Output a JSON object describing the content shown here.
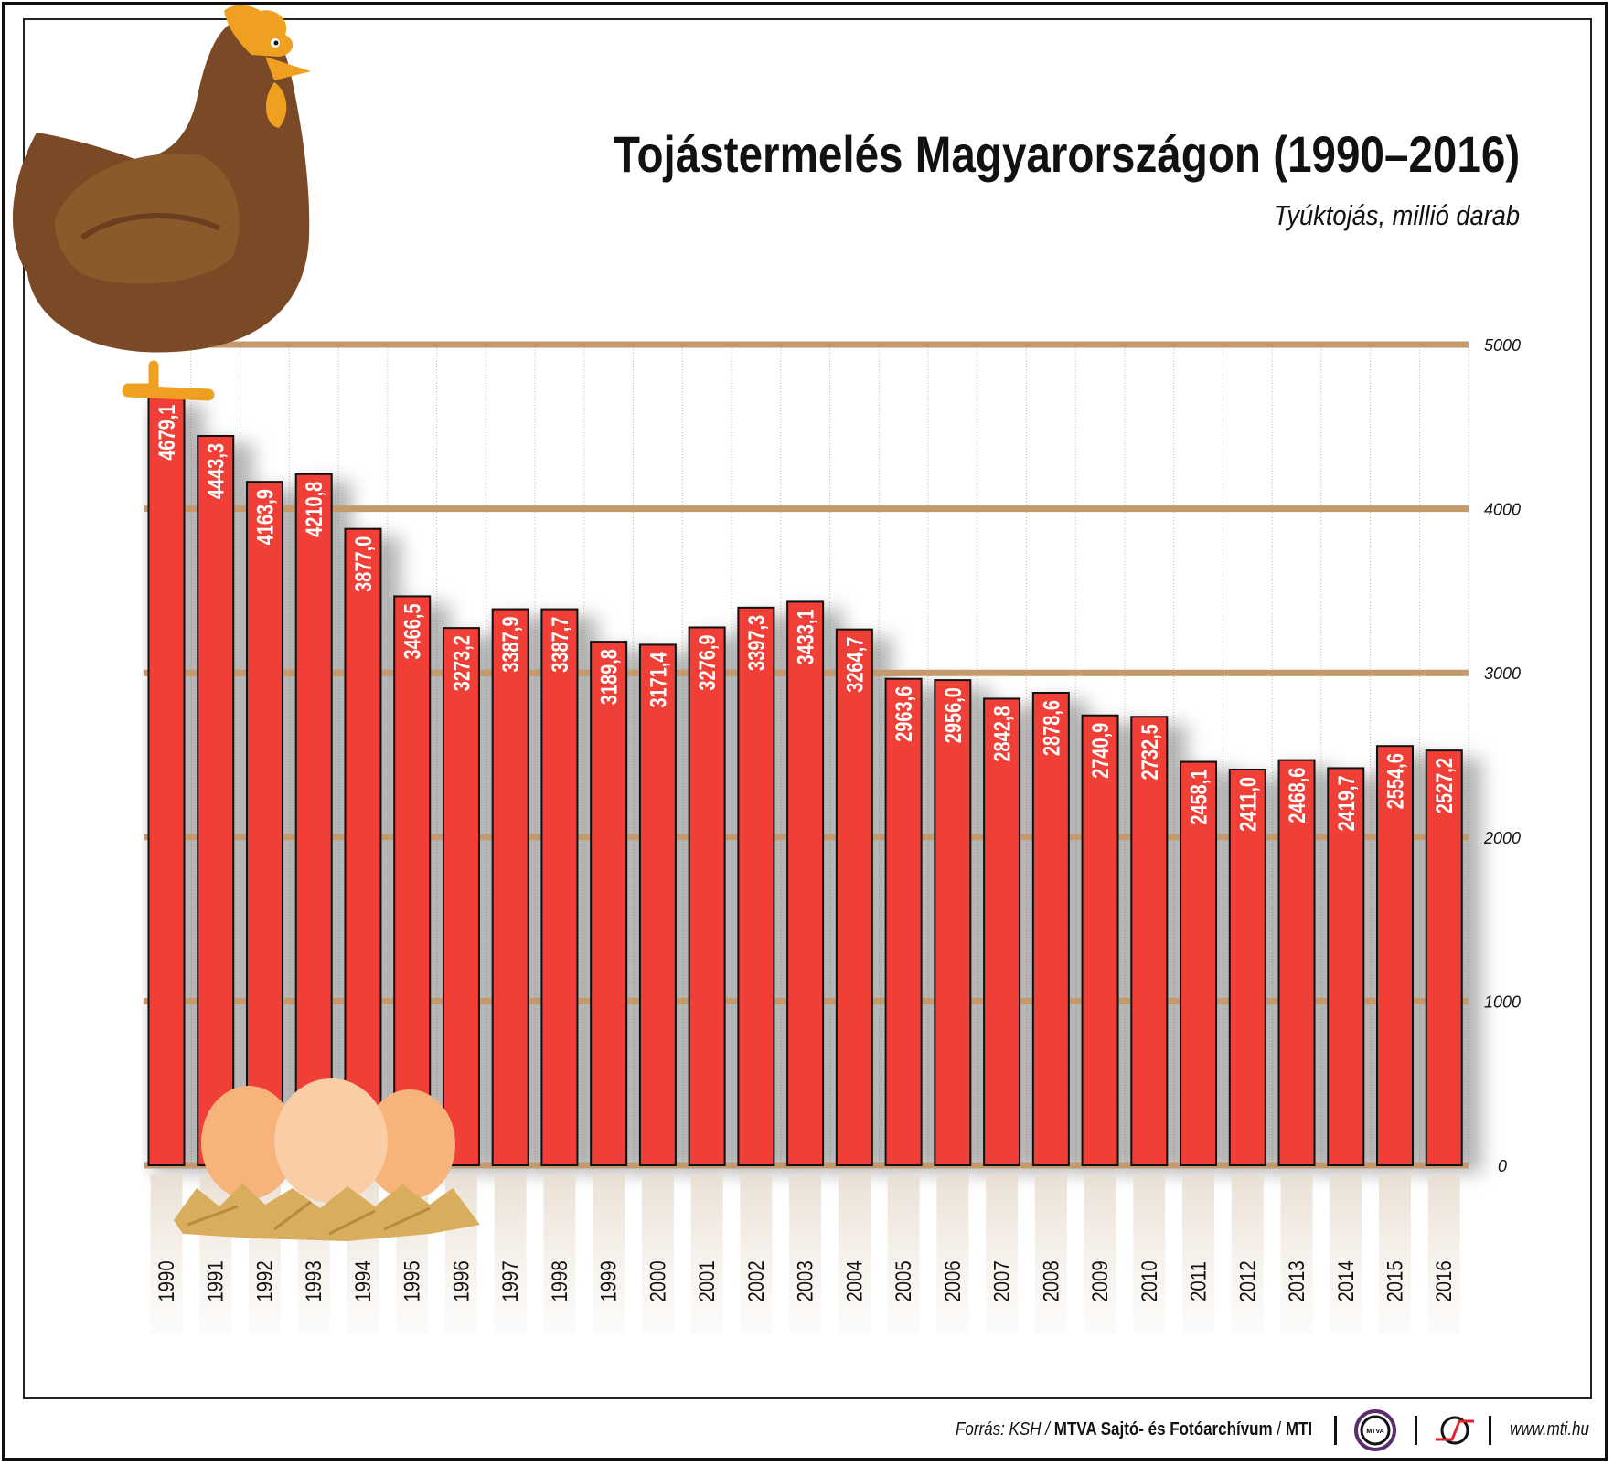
{
  "title": "Tojástermelés Magyarországon (1990–2016)",
  "subtitle": "Tyúktojás, millió darab",
  "footer": {
    "source_prefix": "Forrás: KSH / ",
    "source_bold": "MTVA Sajtó- és Fotóarchívum",
    "source_sep": " / ",
    "source_mti": "MTI",
    "logo_mtva": "MTVA",
    "url": "www.mti.hu"
  },
  "colors": {
    "bar": "#ef3f36",
    "grid": "#c49a6c",
    "hen": "#7a4a26",
    "hen_wing": "#8b5a2b",
    "comb": "#f0a020"
  },
  "chart_data": {
    "type": "bar",
    "title": "Tojástermelés Magyarországon (1990–2016)",
    "subtitle": "Tyúktojás, millió darab",
    "categories": [
      "1990",
      "1991",
      "1992",
      "1993",
      "1994",
      "1995",
      "1996",
      "1997",
      "1998",
      "1999",
      "2000",
      "2001",
      "2002",
      "2003",
      "2004",
      "2005",
      "2006",
      "2007",
      "2008",
      "2009",
      "2010",
      "2011",
      "2012",
      "2013",
      "2014",
      "2015",
      "2016"
    ],
    "values": [
      4679.1,
      4443.3,
      4163.9,
      4210.8,
      3877.0,
      3466.5,
      3273.2,
      3387.9,
      3387.7,
      3189.8,
      3171.4,
      3276.9,
      3397.3,
      3433.1,
      3264.7,
      2963.6,
      2956.0,
      2842.8,
      2878.6,
      2740.9,
      2732.5,
      2458.1,
      2411.0,
      2468.6,
      2419.7,
      2554.6,
      2527.2
    ],
    "labels": [
      "4679,1",
      "4443,3",
      "4163,9",
      "4210,8",
      "3877,0",
      "3466,5",
      "3273,2",
      "3387,9",
      "3387,7",
      "3189,8",
      "3171,4",
      "3276,9",
      "3397,3",
      "3433,1",
      "3264,7",
      "2963,6",
      "2956,0",
      "2842,8",
      "2878,6",
      "2740,9",
      "2732,5",
      "2458,1",
      "2411,0",
      "2468,6",
      "2419,7",
      "2554,6",
      "2527,2"
    ],
    "ylim": [
      0,
      5000
    ],
    "yticks": [
      "0",
      "1000",
      "2000",
      "3000",
      "4000",
      "5000"
    ],
    "ytick_values": [
      0,
      1000,
      2000,
      3000,
      4000,
      5000
    ],
    "grid": true,
    "y_axis_side": "right"
  }
}
